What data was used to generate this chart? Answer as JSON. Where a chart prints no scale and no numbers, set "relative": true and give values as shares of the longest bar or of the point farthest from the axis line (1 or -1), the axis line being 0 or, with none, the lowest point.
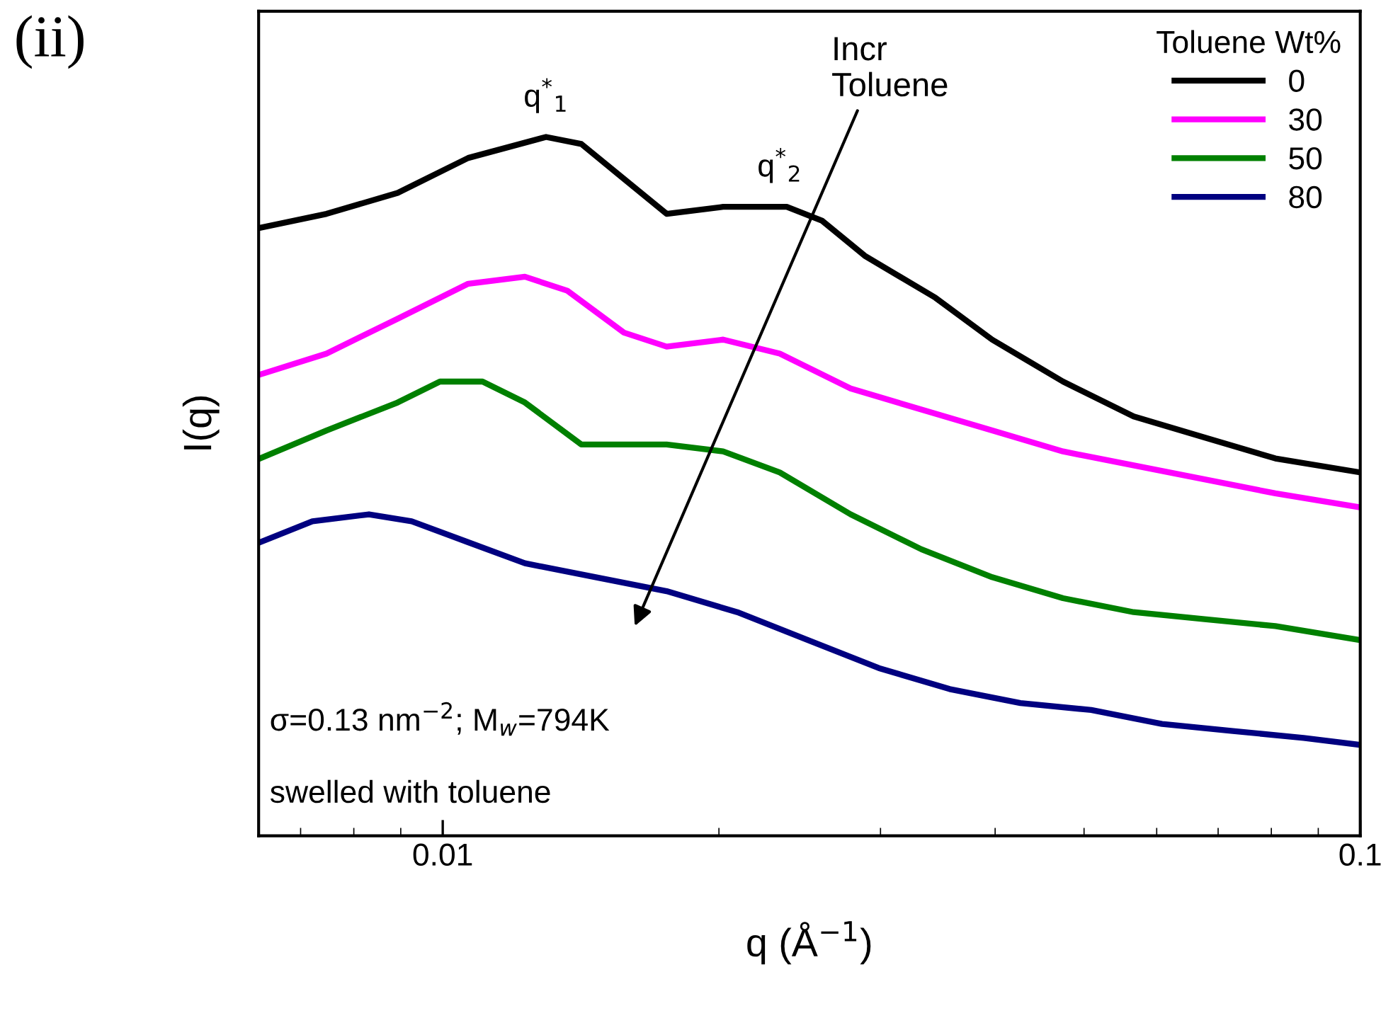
{
  "chart_data": {
    "type": "line",
    "title": "(ii)",
    "xlabel": "q (Å$^{−1}$)",
    "ylabel": "I(q)",
    "legend_title": "Toluene Wt%",
    "legend": "top right",
    "log": "x",
    "relative": true,
    "grid": false,
    "marker": "none",
    "line_style": "solid",
    "tick_labels": "x",
    "xlim": [
      0.0063,
      0.1
    ],
    "xticks": [
      0.01,
      0.1
    ],
    "series": [
      {
        "name": "0",
        "color": "#000000",
        "x": [
          0.00632,
          0.00747,
          0.00893,
          0.01066,
          0.01296,
          0.01416,
          0.01576,
          0.01754,
          0.02021,
          0.02371,
          0.02592,
          0.02884,
          0.03443,
          0.0397,
          0.04743,
          0.05663,
          0.06766,
          0.08081,
          0.1
        ],
        "values": [
          0.87,
          0.89,
          0.92,
          0.97,
          1,
          0.99,
          0.94,
          0.89,
          0.9,
          0.9,
          0.88,
          0.83,
          0.77,
          0.71,
          0.65,
          0.6,
          0.57,
          0.54,
          0.52
        ]
      },
      {
        "name": "30",
        "color": "#ff00ff",
        "x": [
          0.00632,
          0.00747,
          0.00893,
          0.01066,
          0.01229,
          0.01367,
          0.01576,
          0.01754,
          0.02021,
          0.0233,
          0.02783,
          0.03324,
          0.0397,
          0.04743,
          0.05663,
          0.06766,
          0.08081,
          0.1
        ],
        "values": [
          0.66,
          0.69,
          0.74,
          0.79,
          0.8,
          0.78,
          0.72,
          0.7,
          0.71,
          0.69,
          0.64,
          0.61,
          0.58,
          0.55,
          0.53,
          0.51,
          0.49,
          0.47
        ]
      },
      {
        "name": "50",
        "color": "#008000",
        "x": [
          0.00632,
          0.00747,
          0.00893,
          0.00993,
          0.01105,
          0.01229,
          0.01416,
          0.01576,
          0.01754,
          0.02021,
          0.0233,
          0.02783,
          0.03324,
          0.0397,
          0.04743,
          0.05663,
          0.06766,
          0.08081,
          0.1
        ],
        "values": [
          0.54,
          0.58,
          0.62,
          0.65,
          0.65,
          0.62,
          0.56,
          0.56,
          0.56,
          0.55,
          0.52,
          0.46,
          0.41,
          0.37,
          0.34,
          0.32,
          0.31,
          0.3,
          0.28
        ]
      },
      {
        "name": "80",
        "color": "#000080",
        "x": [
          0.00632,
          0.00721,
          0.00831,
          0.00925,
          0.01066,
          0.01229,
          0.01468,
          0.01754,
          0.02094,
          0.025,
          0.02987,
          0.03568,
          0.04262,
          0.05091,
          0.06081,
          0.07264,
          0.08675,
          0.1
        ],
        "values": [
          0.42,
          0.45,
          0.46,
          0.45,
          0.42,
          0.39,
          0.37,
          0.35,
          0.32,
          0.28,
          0.24,
          0.21,
          0.19,
          0.18,
          0.16,
          0.15,
          0.14,
          0.13
        ]
      }
    ],
    "annotations": [
      {
        "text": "q$^{*}$$_{1}$",
        "x": 0.01296,
        "y": 1
      },
      {
        "text": "q$^{*}$$_{2}$",
        "x": 0.0233,
        "y": 0.9
      },
      "Incr\nToluene",
      "σ=0.13 nm$^{−2}$; M$_{w}$=794K",
      "swelled with toluene"
    ]
  }
}
